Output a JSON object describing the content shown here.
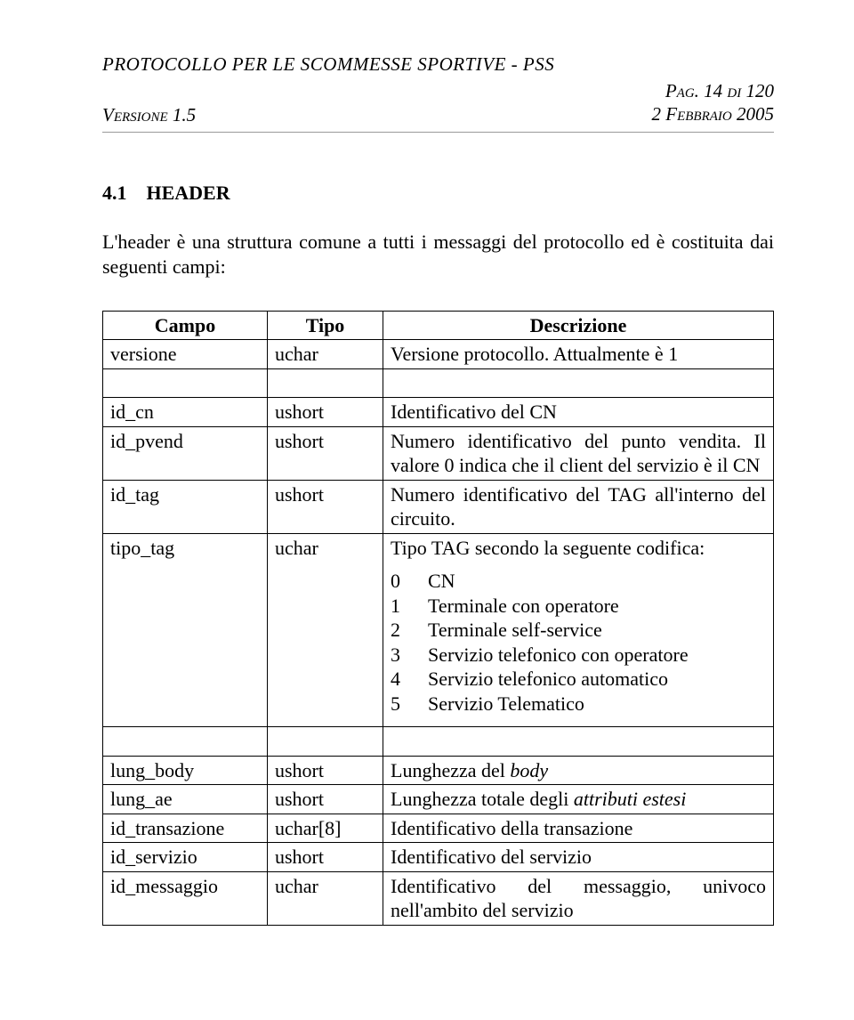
{
  "header": {
    "title": "PROTOCOLLO PER LE SCOMMESSE SPORTIVE - PSS",
    "version_label": "Versione 1.5",
    "page_label": "Pag. 14 di 120",
    "date_label": "2 Febbraio 2005"
  },
  "section": {
    "number": "4.1",
    "title": "HEADER",
    "intro": "L'header è una struttura comune a tutti i messaggi del protocollo ed è costituita dai seguenti campi:"
  },
  "table": {
    "columns": [
      "Campo",
      "Tipo",
      "Descrizione"
    ],
    "rows": [
      {
        "campo": "versione",
        "tipo": "uchar",
        "desc": "Versione protocollo. Attualmente è 1"
      },
      {
        "spacer": true
      },
      {
        "campo": "id_cn",
        "tipo": "ushort",
        "desc": "Identificativo del CN"
      },
      {
        "campo": "id_pvend",
        "tipo": "ushort",
        "desc": "Numero identificativo del punto vendita. Il valore 0 indica che il client del  servizio è  il CN"
      },
      {
        "campo": "id_tag",
        "tipo": "ushort",
        "desc": "Numero identificativo del TAG all'interno del circuito."
      },
      {
        "campo": "tipo_tag",
        "tipo": "uchar",
        "desc_lead": "Tipo TAG secondo la seguente codifica:",
        "codifica": [
          {
            "k": "0",
            "v": "CN"
          },
          {
            "k": "1",
            "v": "Terminale con operatore"
          },
          {
            "k": "2",
            "v": "Terminale self-service"
          },
          {
            "k": "3",
            "v": "Servizio telefonico con operatore"
          },
          {
            "k": "4",
            "v": "Servizio telefonico automatico"
          },
          {
            "k": "5",
            "v": "Servizio Telematico"
          }
        ]
      },
      {
        "spacer": true
      },
      {
        "campo": "lung_body",
        "tipo": "ushort",
        "desc_html": "Lunghezza del <i>body</i>"
      },
      {
        "campo": "lung_ae",
        "tipo": "ushort",
        "desc_html": "Lunghezza totale degli <i>attributi estesi</i>"
      },
      {
        "campo": "id_transazione",
        "tipo": "uchar[8]",
        "desc": "Identificativo della transazione"
      },
      {
        "campo": "id_servizio",
        "tipo": "ushort",
        "desc": "Identificativo del servizio"
      },
      {
        "campo": "id_messaggio",
        "tipo": "uchar",
        "desc": "Identificativo del messaggio, univoco nell'ambito del servizio"
      }
    ]
  }
}
